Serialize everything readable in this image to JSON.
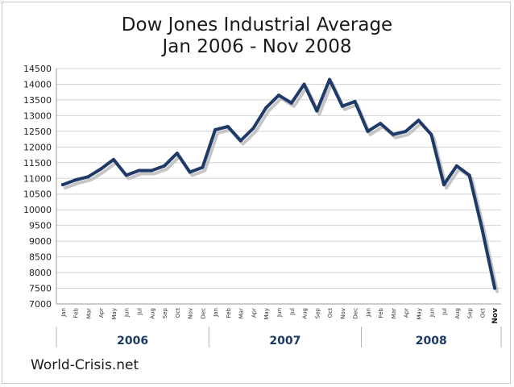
{
  "title": "Dow Jones Industrial Average",
  "subtitle": "Jan 2006 - Nov 2008",
  "source": "World-Crisis.net",
  "colors": {
    "line": "#1f3a68",
    "shadow": "#b8b8b8",
    "grid": "#d4d4d4",
    "year_text": "#1c3a66"
  },
  "chart_data": {
    "type": "line",
    "title": "Dow Jones Industrial Average",
    "subtitle": "Jan 2006 - Nov 2008",
    "ylim": [
      7000,
      14500
    ],
    "yticks": [
      7000,
      7500,
      8000,
      8500,
      9000,
      9500,
      10000,
      10500,
      11000,
      11500,
      12000,
      12500,
      13000,
      13500,
      14000,
      14500
    ],
    "grid": true,
    "x": [
      "Jan",
      "Feb",
      "Mar",
      "Apr",
      "May",
      "Jun",
      "Jul",
      "Aug",
      "Sep",
      "Oct",
      "Nov",
      "Dec",
      "Jan",
      "Feb",
      "Mar",
      "Apr",
      "May",
      "Jun",
      "Jul",
      "Aug",
      "Sep",
      "Oct",
      "Nov",
      "Dec",
      "Jan",
      "Feb",
      "Mar",
      "Apr",
      "May",
      "Jun",
      "Jul",
      "Aug",
      "Sep",
      "Oct",
      "Nov"
    ],
    "year_groups": [
      {
        "label": "2006",
        "count": 12
      },
      {
        "label": "2007",
        "count": 12
      },
      {
        "label": "2008",
        "count": 11
      }
    ],
    "series": [
      {
        "values": [
          10800,
          10950,
          11050,
          11300,
          11600,
          11100,
          11250,
          11250,
          11400,
          11800,
          11200,
          11350,
          12550,
          12650,
          12200,
          12600,
          13250,
          13650,
          13400,
          14000,
          13150,
          14150,
          13300,
          13450,
          12500,
          12750,
          12400,
          12500,
          12850,
          12400,
          10800,
          11400,
          11100,
          9400,
          7500
        ]
      }
    ]
  }
}
